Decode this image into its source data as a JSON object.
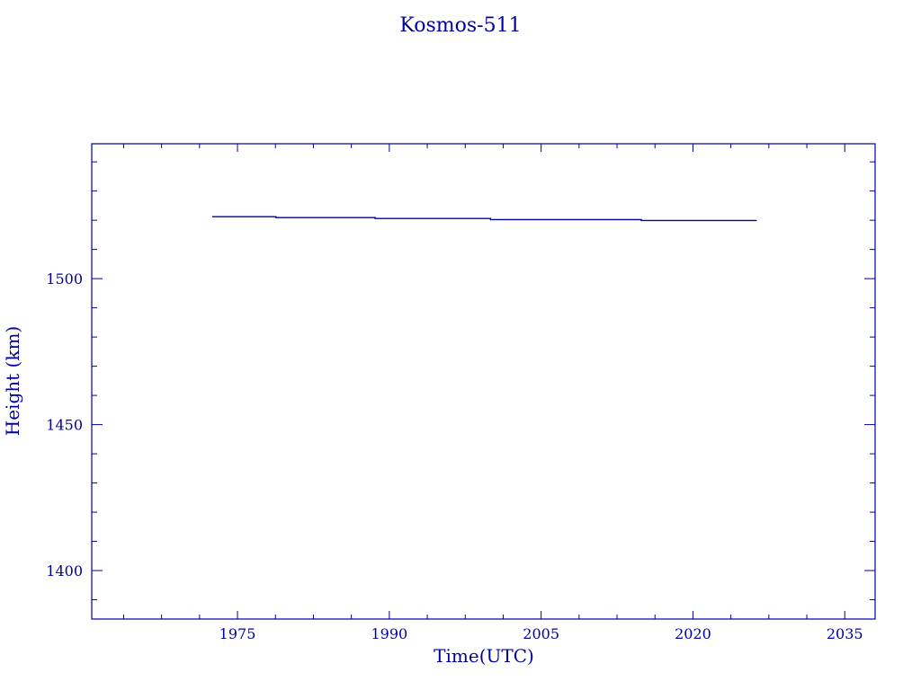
{
  "chart_data": {
    "type": "line",
    "title": "Kosmos-511",
    "xlabel": "Time(UTC)",
    "ylabel": "Height (km)",
    "xlim": [
      1960.6,
      2038.0
    ],
    "ylim": [
      1383.4,
      1546.2
    ],
    "x_ticks": [
      1975,
      1990,
      2005,
      2020,
      2035
    ],
    "x_minor_step": 3.75,
    "y_ticks": [
      1400,
      1450,
      1500
    ],
    "y_minor_step": 10,
    "grid": false,
    "color": "#0000a0",
    "series": [
      {
        "step": true,
        "x": [
          1972.5,
          1978.8,
          1988.6,
          2000.0,
          2014.9,
          2026.3
        ],
        "y": [
          1521.2,
          1520.9,
          1520.6,
          1520.2,
          1519.9,
          1519.9
        ]
      }
    ]
  }
}
